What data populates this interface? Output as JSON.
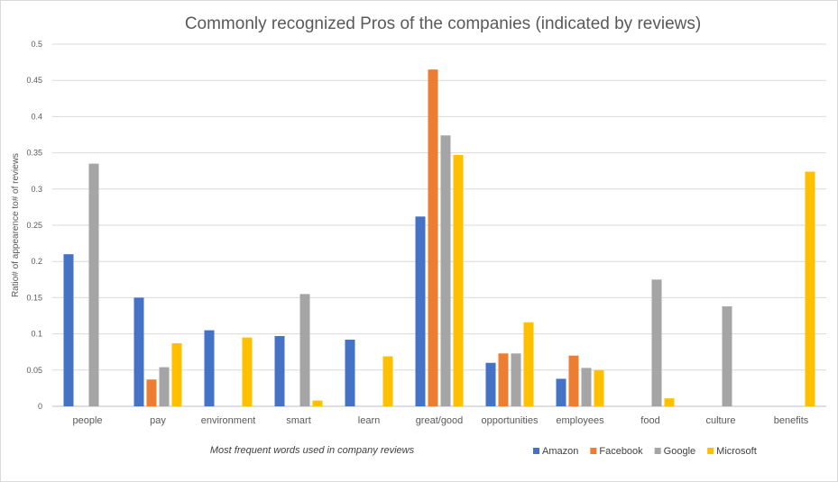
{
  "chart_data": {
    "type": "bar",
    "title": "Commonly recognized Pros of the companies (indicated by reviews)",
    "xlabel": "Most frequent words used in company reviews",
    "ylabel": "Ratio# of appearence to# of reviews",
    "ylim": [
      0,
      0.5
    ],
    "yticks": [
      "0",
      "0.05",
      "0.1",
      "0.15",
      "0.2",
      "0.25",
      "0.3",
      "0.35",
      "0.4",
      "0.45",
      "0.5"
    ],
    "grid": true,
    "legend_position": "bottom-right",
    "categories": [
      "people",
      "pay",
      "environment",
      "smart",
      "learn",
      "great/good",
      "opportunities",
      "employees",
      "food",
      "culture",
      "benefits"
    ],
    "series": [
      {
        "name": "Amazon",
        "color": "#4472c4",
        "values": [
          0.21,
          0.15,
          0.105,
          0.097,
          0.092,
          0.262,
          0.06,
          0.038,
          0,
          0,
          0
        ]
      },
      {
        "name": "Facebook",
        "color": "#ed7d31",
        "values": [
          0,
          0.037,
          0,
          0,
          0,
          0.465,
          0.073,
          0.07,
          0,
          0,
          0
        ]
      },
      {
        "name": "Google",
        "color": "#a5a5a5",
        "values": [
          0.335,
          0.054,
          0,
          0.155,
          0,
          0.374,
          0.073,
          0.053,
          0.175,
          0.138,
          0
        ]
      },
      {
        "name": "Microsoft",
        "color": "#ffc000",
        "values": [
          0,
          0.087,
          0.095,
          0.008,
          0.069,
          0.347,
          0.116,
          0.05,
          0.011,
          0,
          0.324
        ]
      }
    ]
  }
}
